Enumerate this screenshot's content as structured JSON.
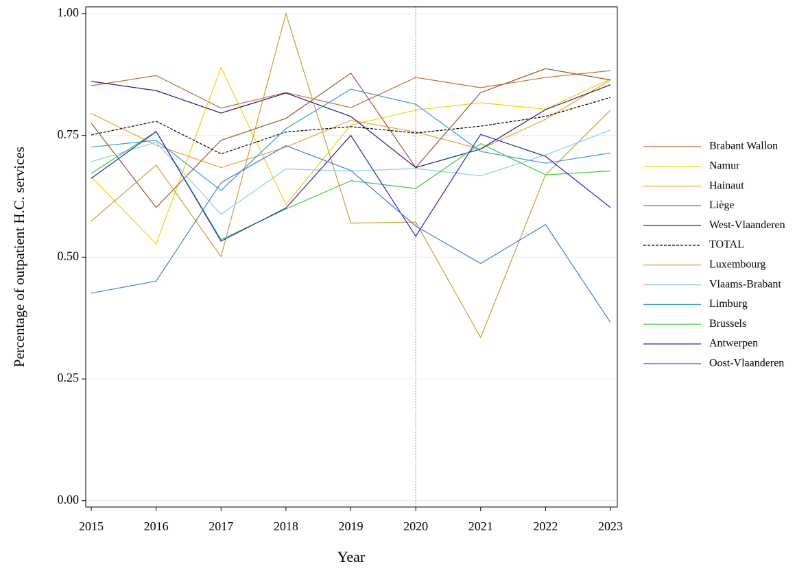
{
  "chart_data": {
    "type": "line",
    "x_label": "Year",
    "y_label": "Percentage of outpatient H.C. services",
    "x": [
      2015,
      2016,
      2017,
      2018,
      2019,
      2020,
      2021,
      2022,
      2023
    ],
    "xlim": [
      2014.915,
      2023.106
    ],
    "xticks": [
      2015,
      2016,
      2017,
      2018,
      2019,
      2020,
      2021,
      2022,
      2023
    ],
    "ylim": [
      -0.013,
      1.014
    ],
    "yticks": [
      {
        "value": 0,
        "label": "0.00"
      },
      {
        "value": 0.25,
        "label": "0.25"
      },
      {
        "value": 0.5,
        "label": "0.50"
      },
      {
        "value": 0.75,
        "label": "0.75"
      },
      {
        "value": 1,
        "label": "1.00"
      }
    ],
    "grid": true,
    "legend": "right",
    "reference_line": {
      "x": 2020,
      "color": "#e06070"
    },
    "series": [
      {
        "name": "Brabant Wallon",
        "color": "#cc6633",
        "values": [
          0.852,
          0.873,
          0.806,
          0.838,
          0.807,
          0.869,
          0.848,
          0.869,
          0.883
        ]
      },
      {
        "name": "Namur",
        "color": "#f5d000",
        "values": [
          0.665,
          0.527,
          0.89,
          0.608,
          0.771,
          0.802,
          0.817,
          0.804,
          0.866
        ]
      },
      {
        "name": "Hainaut",
        "color": "#f0a020",
        "values": [
          0.795,
          0.73,
          0.684,
          0.726,
          0.781,
          0.757,
          0.722,
          0.783,
          0.864
        ]
      },
      {
        "name": "Liège",
        "color": "#a0522d",
        "values": [
          0.775,
          0.602,
          0.74,
          0.785,
          0.878,
          0.684,
          0.838,
          0.887,
          0.864
        ]
      },
      {
        "name": "West-Vlaanderen",
        "color": "#1a1a80",
        "values": [
          0.861,
          0.842,
          0.796,
          0.837,
          0.789,
          0.684,
          0.722,
          0.803,
          0.854
        ]
      },
      {
        "name": "TOTAL",
        "color": "#000000",
        "dashed": true,
        "values": [
          0.751,
          0.779,
          0.712,
          0.757,
          0.768,
          0.755,
          0.769,
          0.789,
          0.828
        ]
      },
      {
        "name": "Luxembourg",
        "color": "#c8a030",
        "values": [
          0.574,
          0.689,
          0.501,
          1.0,
          0.57,
          0.572,
          0.335,
          0.669,
          0.802
        ]
      },
      {
        "name": "Vlaams-Brabant",
        "color": "#87ceeb",
        "values": [
          0.696,
          0.736,
          0.588,
          0.681,
          0.677,
          0.682,
          0.667,
          0.71,
          0.761
        ]
      },
      {
        "name": "Limburg",
        "color": "#3399dd",
        "values": [
          0.726,
          0.74,
          0.637,
          0.764,
          0.845,
          0.814,
          0.717,
          0.693,
          0.714
        ]
      },
      {
        "name": "Brussels",
        "color": "#33cc33",
        "values": [
          0.672,
          0.758,
          0.536,
          0.599,
          0.657,
          0.641,
          0.733,
          0.669,
          0.677
        ]
      },
      {
        "name": "Antwerpen",
        "color": "#2020d0",
        "values": [
          0.662,
          0.758,
          0.533,
          0.601,
          0.75,
          0.543,
          0.752,
          0.707,
          0.602
        ]
      },
      {
        "name": "Oost-Vlaanderen",
        "color": "#4477dd",
        "values": [
          0.426,
          0.451,
          0.653,
          0.729,
          0.678,
          0.564,
          0.487,
          0.567,
          0.366
        ]
      }
    ]
  }
}
